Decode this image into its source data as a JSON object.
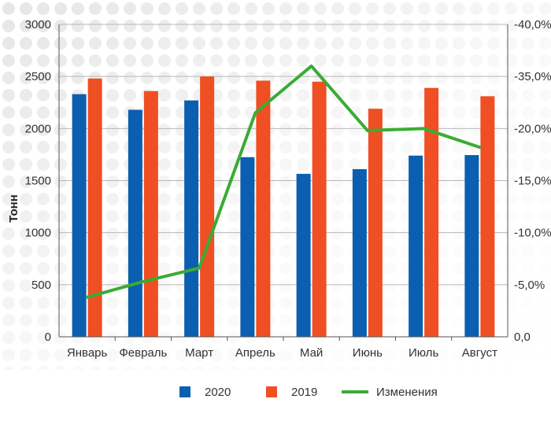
{
  "chart_data": {
    "type": "bar",
    "title": "",
    "ylabel": "Тонн",
    "categories": [
      "Январь",
      "Февраль",
      "Март",
      "Апрель",
      "Май",
      "Июнь",
      "Июль",
      "Август"
    ],
    "series": [
      {
        "name": "2020",
        "type": "bar",
        "axis": "left",
        "color": "#0a5fb0",
        "values": [
          2330,
          2180,
          2270,
          1725,
          1565,
          1610,
          1740,
          1745
        ]
      },
      {
        "name": "2019",
        "type": "bar",
        "axis": "left",
        "color": "#f04e23",
        "values": [
          2480,
          2360,
          2500,
          2460,
          2450,
          2190,
          2390,
          2310
        ]
      },
      {
        "name": "Изменения",
        "type": "line",
        "axis": "right",
        "color": "#3bab35",
        "values": [
          3.8,
          5.3,
          6.6,
          21.5,
          26.0,
          19.8,
          20.0,
          18.2
        ]
      }
    ],
    "y_left": {
      "min": 0,
      "max": 3000,
      "ticks": [
        "0",
        "500",
        "1000",
        "1500",
        "2000",
        "2500",
        "3000"
      ]
    },
    "y_right": {
      "min": 0,
      "max": 30,
      "ticks": [
        "0,0",
        "-5,0%",
        "-10,0%",
        "-15,0%",
        "-20,0%",
        "-35,0%",
        "-40,0%"
      ]
    },
    "grid": true,
    "legend_position": "bottom"
  }
}
